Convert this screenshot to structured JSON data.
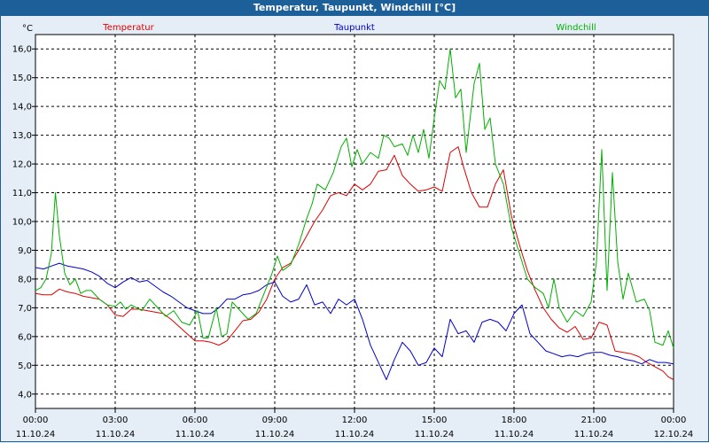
{
  "window": {
    "title": "Temperatur, Taupunkt, Windchill [°C]"
  },
  "chart_data": {
    "type": "line",
    "title": "Temperatur, Taupunkt, Windchill [°C]",
    "ylabel": "°C",
    "ylim": [
      3.5,
      16.5
    ],
    "xlim": [
      0,
      24
    ],
    "yticks": [
      "4,0",
      "5,0",
      "6,0",
      "7,0",
      "8,0",
      "9,0",
      "10,0",
      "11,0",
      "12,0",
      "13,0",
      "14,0",
      "15,0",
      "16,0"
    ],
    "xticks": [
      {
        "time": "00:00",
        "date": "11.10.24"
      },
      {
        "time": "03:00",
        "date": "11.10.24"
      },
      {
        "time": "06:00",
        "date": "11.10.24"
      },
      {
        "time": "09:00",
        "date": "11.10.24"
      },
      {
        "time": "12:00",
        "date": "11.10.24"
      },
      {
        "time": "15:00",
        "date": "11.10.24"
      },
      {
        "time": "18:00",
        "date": "11.10.24"
      },
      {
        "time": "21:00",
        "date": "11.10.24"
      },
      {
        "time": "00:00",
        "date": "12.10.24"
      }
    ],
    "grid": true,
    "series": [
      {
        "name": "Temperatur",
        "color": "#e00000",
        "points": [
          [
            0,
            7.5
          ],
          [
            0.3,
            7.45
          ],
          [
            0.6,
            7.45
          ],
          [
            0.9,
            7.65
          ],
          [
            1.2,
            7.55
          ],
          [
            1.5,
            7.5
          ],
          [
            1.8,
            7.4
          ],
          [
            2.1,
            7.35
          ],
          [
            2.4,
            7.3
          ],
          [
            2.7,
            7.1
          ],
          [
            3.0,
            6.75
          ],
          [
            3.3,
            6.7
          ],
          [
            3.6,
            6.95
          ],
          [
            3.9,
            6.95
          ],
          [
            4.2,
            6.9
          ],
          [
            4.5,
            6.85
          ],
          [
            4.8,
            6.8
          ],
          [
            5.1,
            6.6
          ],
          [
            5.4,
            6.35
          ],
          [
            5.7,
            6.1
          ],
          [
            6.0,
            5.85
          ],
          [
            6.3,
            5.85
          ],
          [
            6.6,
            5.8
          ],
          [
            6.9,
            5.7
          ],
          [
            7.2,
            5.85
          ],
          [
            7.5,
            6.2
          ],
          [
            7.8,
            6.55
          ],
          [
            8.1,
            6.6
          ],
          [
            8.4,
            6.85
          ],
          [
            8.7,
            7.3
          ],
          [
            9.0,
            8.0
          ],
          [
            9.3,
            8.4
          ],
          [
            9.6,
            8.55
          ],
          [
            9.9,
            9.0
          ],
          [
            10.2,
            9.5
          ],
          [
            10.5,
            10.0
          ],
          [
            10.8,
            10.4
          ],
          [
            11.1,
            10.9
          ],
          [
            11.4,
            11.0
          ],
          [
            11.7,
            10.9
          ],
          [
            12.0,
            11.3
          ],
          [
            12.3,
            11.1
          ],
          [
            12.6,
            11.3
          ],
          [
            12.9,
            11.75
          ],
          [
            13.2,
            11.8
          ],
          [
            13.5,
            12.3
          ],
          [
            13.8,
            11.6
          ],
          [
            14.1,
            11.3
          ],
          [
            14.4,
            11.05
          ],
          [
            14.7,
            11.1
          ],
          [
            15.0,
            11.2
          ],
          [
            15.3,
            11.05
          ],
          [
            15.6,
            12.4
          ],
          [
            15.9,
            12.6
          ],
          [
            16.1,
            11.9
          ],
          [
            16.4,
            11.0
          ],
          [
            16.7,
            10.5
          ],
          [
            17.0,
            10.5
          ],
          [
            17.3,
            11.3
          ],
          [
            17.6,
            11.8
          ],
          [
            17.9,
            10.2
          ],
          [
            18.2,
            9.2
          ],
          [
            18.5,
            8.3
          ],
          [
            18.8,
            7.6
          ],
          [
            19.1,
            7.0
          ],
          [
            19.4,
            6.6
          ],
          [
            19.7,
            6.3
          ],
          [
            20.0,
            6.15
          ],
          [
            20.3,
            6.35
          ],
          [
            20.6,
            5.9
          ],
          [
            20.9,
            5.95
          ],
          [
            21.2,
            6.5
          ],
          [
            21.5,
            6.4
          ],
          [
            21.8,
            5.5
          ],
          [
            22.1,
            5.45
          ],
          [
            22.4,
            5.4
          ],
          [
            22.7,
            5.3
          ],
          [
            23.0,
            5.1
          ],
          [
            23.3,
            4.95
          ],
          [
            23.6,
            4.8
          ],
          [
            23.8,
            4.6
          ],
          [
            24.0,
            4.5
          ]
        ]
      },
      {
        "name": "Taupunkt",
        "color": "#0000c8",
        "points": [
          [
            0,
            8.4
          ],
          [
            0.3,
            8.35
          ],
          [
            0.6,
            8.45
          ],
          [
            0.9,
            8.55
          ],
          [
            1.2,
            8.45
          ],
          [
            1.5,
            8.4
          ],
          [
            1.8,
            8.35
          ],
          [
            2.1,
            8.25
          ],
          [
            2.4,
            8.1
          ],
          [
            2.7,
            7.85
          ],
          [
            3.0,
            7.7
          ],
          [
            3.3,
            7.9
          ],
          [
            3.6,
            8.05
          ],
          [
            3.9,
            7.9
          ],
          [
            4.2,
            7.95
          ],
          [
            4.5,
            7.75
          ],
          [
            4.8,
            7.55
          ],
          [
            5.1,
            7.4
          ],
          [
            5.4,
            7.2
          ],
          [
            5.7,
            7.0
          ],
          [
            6.0,
            6.9
          ],
          [
            6.3,
            6.8
          ],
          [
            6.6,
            6.8
          ],
          [
            6.9,
            7.0
          ],
          [
            7.2,
            7.3
          ],
          [
            7.5,
            7.3
          ],
          [
            7.8,
            7.45
          ],
          [
            8.1,
            7.5
          ],
          [
            8.4,
            7.6
          ],
          [
            8.7,
            7.8
          ],
          [
            9.0,
            7.9
          ],
          [
            9.3,
            7.4
          ],
          [
            9.6,
            7.2
          ],
          [
            9.9,
            7.3
          ],
          [
            10.2,
            7.8
          ],
          [
            10.5,
            7.1
          ],
          [
            10.8,
            7.2
          ],
          [
            11.1,
            6.8
          ],
          [
            11.4,
            7.3
          ],
          [
            11.7,
            7.1
          ],
          [
            12.0,
            7.3
          ],
          [
            12.3,
            6.6
          ],
          [
            12.6,
            5.7
          ],
          [
            12.9,
            5.1
          ],
          [
            13.2,
            4.5
          ],
          [
            13.5,
            5.2
          ],
          [
            13.8,
            5.8
          ],
          [
            14.1,
            5.5
          ],
          [
            14.4,
            5.0
          ],
          [
            14.7,
            5.1
          ],
          [
            15.0,
            5.6
          ],
          [
            15.3,
            5.3
          ],
          [
            15.6,
            6.6
          ],
          [
            15.9,
            6.1
          ],
          [
            16.2,
            6.2
          ],
          [
            16.5,
            5.8
          ],
          [
            16.8,
            6.5
          ],
          [
            17.1,
            6.6
          ],
          [
            17.4,
            6.5
          ],
          [
            17.7,
            6.2
          ],
          [
            18.0,
            6.8
          ],
          [
            18.3,
            7.1
          ],
          [
            18.6,
            6.1
          ],
          [
            18.9,
            5.8
          ],
          [
            19.2,
            5.5
          ],
          [
            19.5,
            5.4
          ],
          [
            19.8,
            5.3
          ],
          [
            20.1,
            5.35
          ],
          [
            20.4,
            5.3
          ],
          [
            20.7,
            5.4
          ],
          [
            21.0,
            5.45
          ],
          [
            21.3,
            5.45
          ],
          [
            21.6,
            5.35
          ],
          [
            21.9,
            5.3
          ],
          [
            22.2,
            5.2
          ],
          [
            22.5,
            5.15
          ],
          [
            22.8,
            5.05
          ],
          [
            23.1,
            5.2
          ],
          [
            23.4,
            5.1
          ],
          [
            23.7,
            5.1
          ],
          [
            24.0,
            5.05
          ]
        ]
      },
      {
        "name": "Windchill",
        "color": "#00b000",
        "points": [
          [
            0,
            7.6
          ],
          [
            0.2,
            7.7
          ],
          [
            0.4,
            8.0
          ],
          [
            0.6,
            8.9
          ],
          [
            0.75,
            11.0
          ],
          [
            0.9,
            9.5
          ],
          [
            1.1,
            8.2
          ],
          [
            1.3,
            7.8
          ],
          [
            1.5,
            8.0
          ],
          [
            1.7,
            7.5
          ],
          [
            1.9,
            7.6
          ],
          [
            2.1,
            7.6
          ],
          [
            2.4,
            7.3
          ],
          [
            2.7,
            7.1
          ],
          [
            3.0,
            7.05
          ],
          [
            3.2,
            7.2
          ],
          [
            3.4,
            6.95
          ],
          [
            3.6,
            7.1
          ],
          [
            3.8,
            7.0
          ],
          [
            4.0,
            6.9
          ],
          [
            4.3,
            7.3
          ],
          [
            4.6,
            7.0
          ],
          [
            4.9,
            6.7
          ],
          [
            5.2,
            6.9
          ],
          [
            5.5,
            6.5
          ],
          [
            5.8,
            6.4
          ],
          [
            6.1,
            6.9
          ],
          [
            6.3,
            5.95
          ],
          [
            6.5,
            5.95
          ],
          [
            6.8,
            7.0
          ],
          [
            7.0,
            6.0
          ],
          [
            7.2,
            6.1
          ],
          [
            7.4,
            7.2
          ],
          [
            7.7,
            6.9
          ],
          [
            8.0,
            6.6
          ],
          [
            8.3,
            6.8
          ],
          [
            8.6,
            7.5
          ],
          [
            8.9,
            8.2
          ],
          [
            9.1,
            8.8
          ],
          [
            9.3,
            8.3
          ],
          [
            9.6,
            8.5
          ],
          [
            9.9,
            9.2
          ],
          [
            10.2,
            10.1
          ],
          [
            10.4,
            10.6
          ],
          [
            10.6,
            11.3
          ],
          [
            10.9,
            11.1
          ],
          [
            11.2,
            11.7
          ],
          [
            11.5,
            12.6
          ],
          [
            11.7,
            12.9
          ],
          [
            11.9,
            11.9
          ],
          [
            12.1,
            12.5
          ],
          [
            12.3,
            12.0
          ],
          [
            12.6,
            12.4
          ],
          [
            12.9,
            12.2
          ],
          [
            13.1,
            13.0
          ],
          [
            13.3,
            12.9
          ],
          [
            13.5,
            12.6
          ],
          [
            13.8,
            12.7
          ],
          [
            14.0,
            12.3
          ],
          [
            14.2,
            13.0
          ],
          [
            14.4,
            12.4
          ],
          [
            14.6,
            13.2
          ],
          [
            14.8,
            12.2
          ],
          [
            15.0,
            13.6
          ],
          [
            15.2,
            14.9
          ],
          [
            15.4,
            14.6
          ],
          [
            15.6,
            16.0
          ],
          [
            15.8,
            14.3
          ],
          [
            16.0,
            14.6
          ],
          [
            16.2,
            12.4
          ],
          [
            16.5,
            14.8
          ],
          [
            16.7,
            15.5
          ],
          [
            16.9,
            13.2
          ],
          [
            17.1,
            13.6
          ],
          [
            17.3,
            12.0
          ],
          [
            17.6,
            11.3
          ],
          [
            17.9,
            9.8
          ],
          [
            18.1,
            9.2
          ],
          [
            18.3,
            8.6
          ],
          [
            18.5,
            8.0
          ],
          [
            18.8,
            7.7
          ],
          [
            19.1,
            7.5
          ],
          [
            19.3,
            7.0
          ],
          [
            19.5,
            8.0
          ],
          [
            19.7,
            7.0
          ],
          [
            20.0,
            6.5
          ],
          [
            20.3,
            6.9
          ],
          [
            20.6,
            6.7
          ],
          [
            20.9,
            7.2
          ],
          [
            21.1,
            8.6
          ],
          [
            21.3,
            12.5
          ],
          [
            21.5,
            7.6
          ],
          [
            21.7,
            11.7
          ],
          [
            21.9,
            8.6
          ],
          [
            22.1,
            7.3
          ],
          [
            22.3,
            8.2
          ],
          [
            22.6,
            7.2
          ],
          [
            22.9,
            7.3
          ],
          [
            23.1,
            6.9
          ],
          [
            23.3,
            5.8
          ],
          [
            23.6,
            5.7
          ],
          [
            23.8,
            6.2
          ],
          [
            24.0,
            5.6
          ]
        ]
      }
    ]
  }
}
